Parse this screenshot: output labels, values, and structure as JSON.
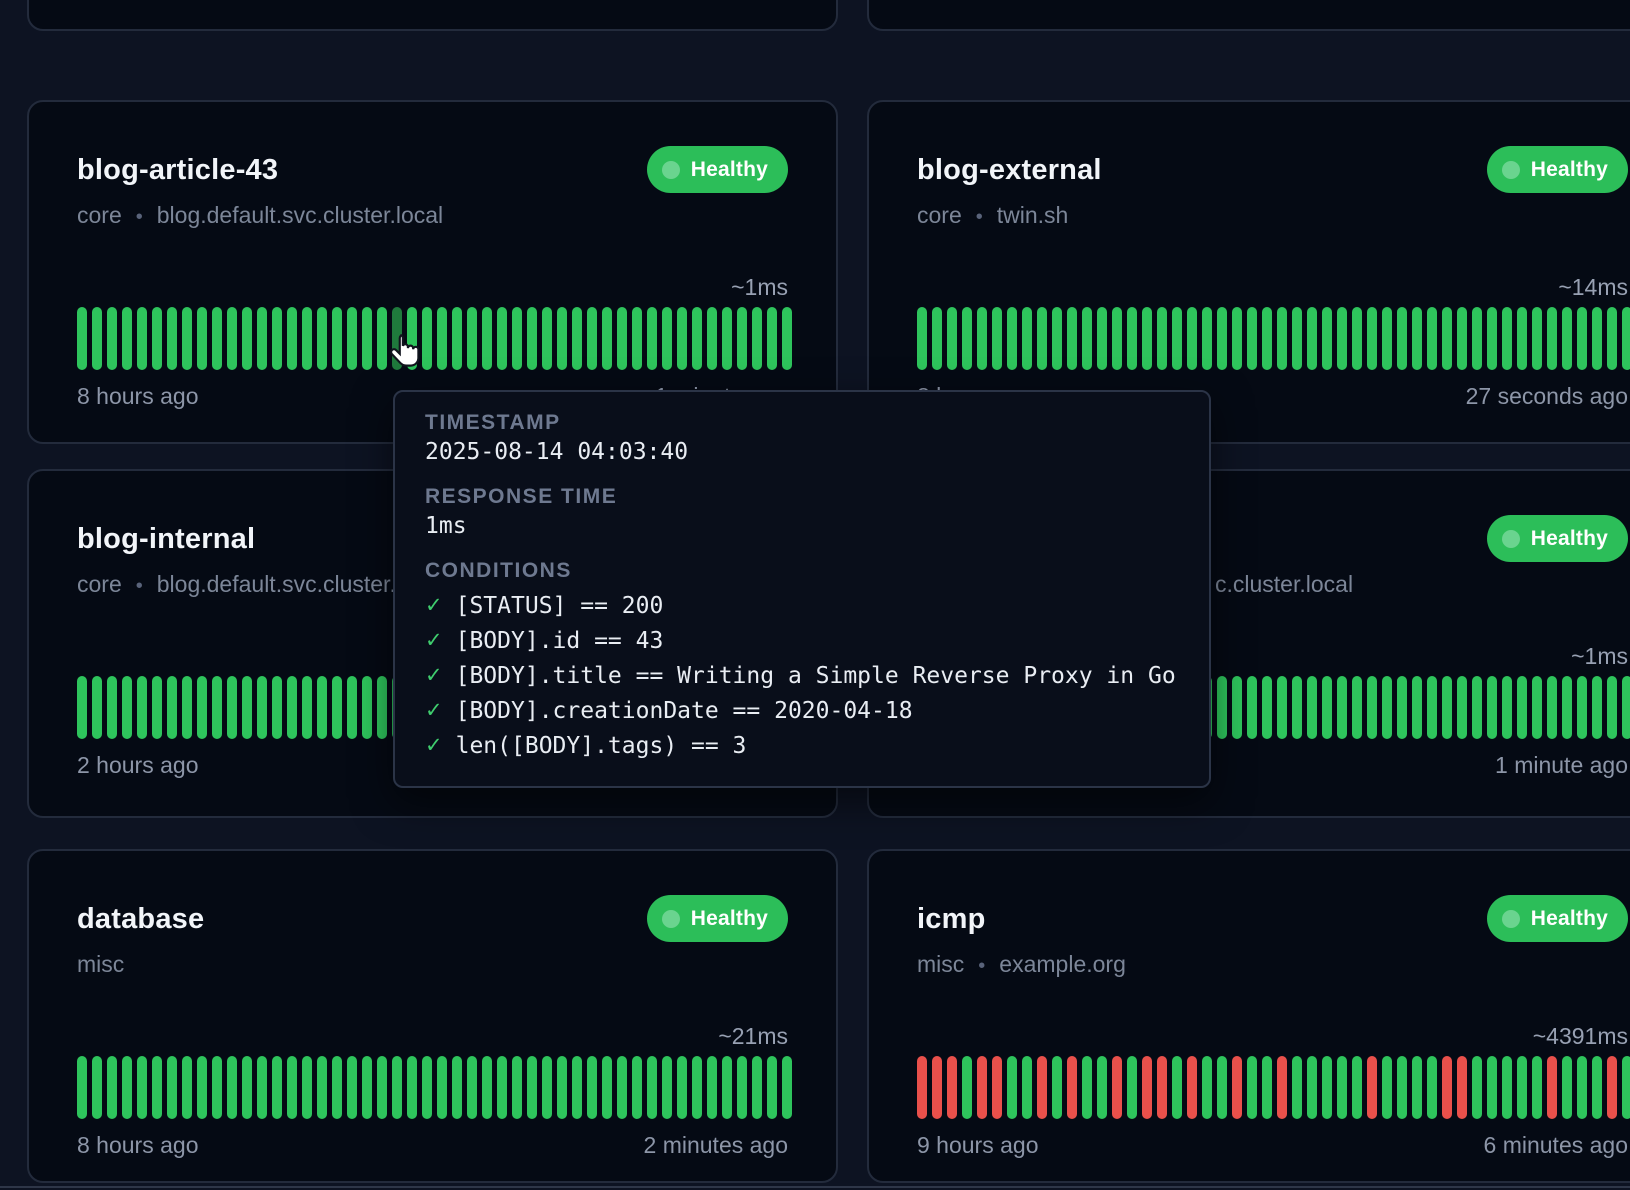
{
  "colors": {
    "bar_up": "#2ec45c",
    "bar_down": "#e9504b",
    "bar_hover": "#1f7a3c",
    "badge_bg": "#2cbe59",
    "badge_dot": "#6ad48f"
  },
  "cards": [
    {
      "title": "blog-article-43",
      "group": "core",
      "url": "blog.default.svc.cluster.local",
      "status": "Healthy",
      "latency": "~1ms",
      "left_time": "8 hours ago",
      "right_time": "1 minute ago",
      "bars": {
        "count": 48,
        "hover_index": 21
      }
    },
    {
      "title": "blog-external",
      "group": "core",
      "url": "twin.sh",
      "status": "Healthy",
      "latency": "~14ms",
      "left_time": "8 hours ago",
      "right_time": "27 seconds ago",
      "bars": {
        "count": 50
      }
    },
    {
      "title": "blog-internal",
      "group": "core",
      "url": "blog.default.svc.cluster.local",
      "left_time": "2 hours ago",
      "bars": {
        "count": 50
      }
    },
    {
      "url_fragment": "c.cluster.local",
      "status": "Healthy",
      "latency": "~1ms",
      "right_time": "1 minute ago",
      "bars": {
        "count": 50
      }
    },
    {
      "title": "database",
      "group": "misc",
      "status": "Healthy",
      "latency": "~21ms",
      "left_time": "8 hours ago",
      "right_time": "2 minutes ago",
      "bars": {
        "count": 48
      }
    },
    {
      "title": "icmp",
      "group": "misc",
      "url": "example.org",
      "status": "Healthy",
      "latency": "~4391ms",
      "left_time": "9 hours ago",
      "right_time": "6 minutes ago",
      "bars": {
        "count": 49,
        "sequence": "dddudduududuududduduuduuduuuuuduuuudduuuuuduuudud"
      }
    }
  ],
  "tooltip": {
    "timestamp_label": "TIMESTAMP",
    "timestamp": "2025-08-14 04:03:40",
    "response_label": "RESPONSE TIME",
    "response": "1ms",
    "conditions_label": "CONDITIONS",
    "check": "✓",
    "conditions": [
      "[STATUS] == 200",
      "[BODY].id == 43",
      "[BODY].title == Writing a Simple Reverse Proxy in Go",
      "[BODY].creationDate == 2020-04-18",
      "len([BODY].tags) == 3"
    ]
  }
}
